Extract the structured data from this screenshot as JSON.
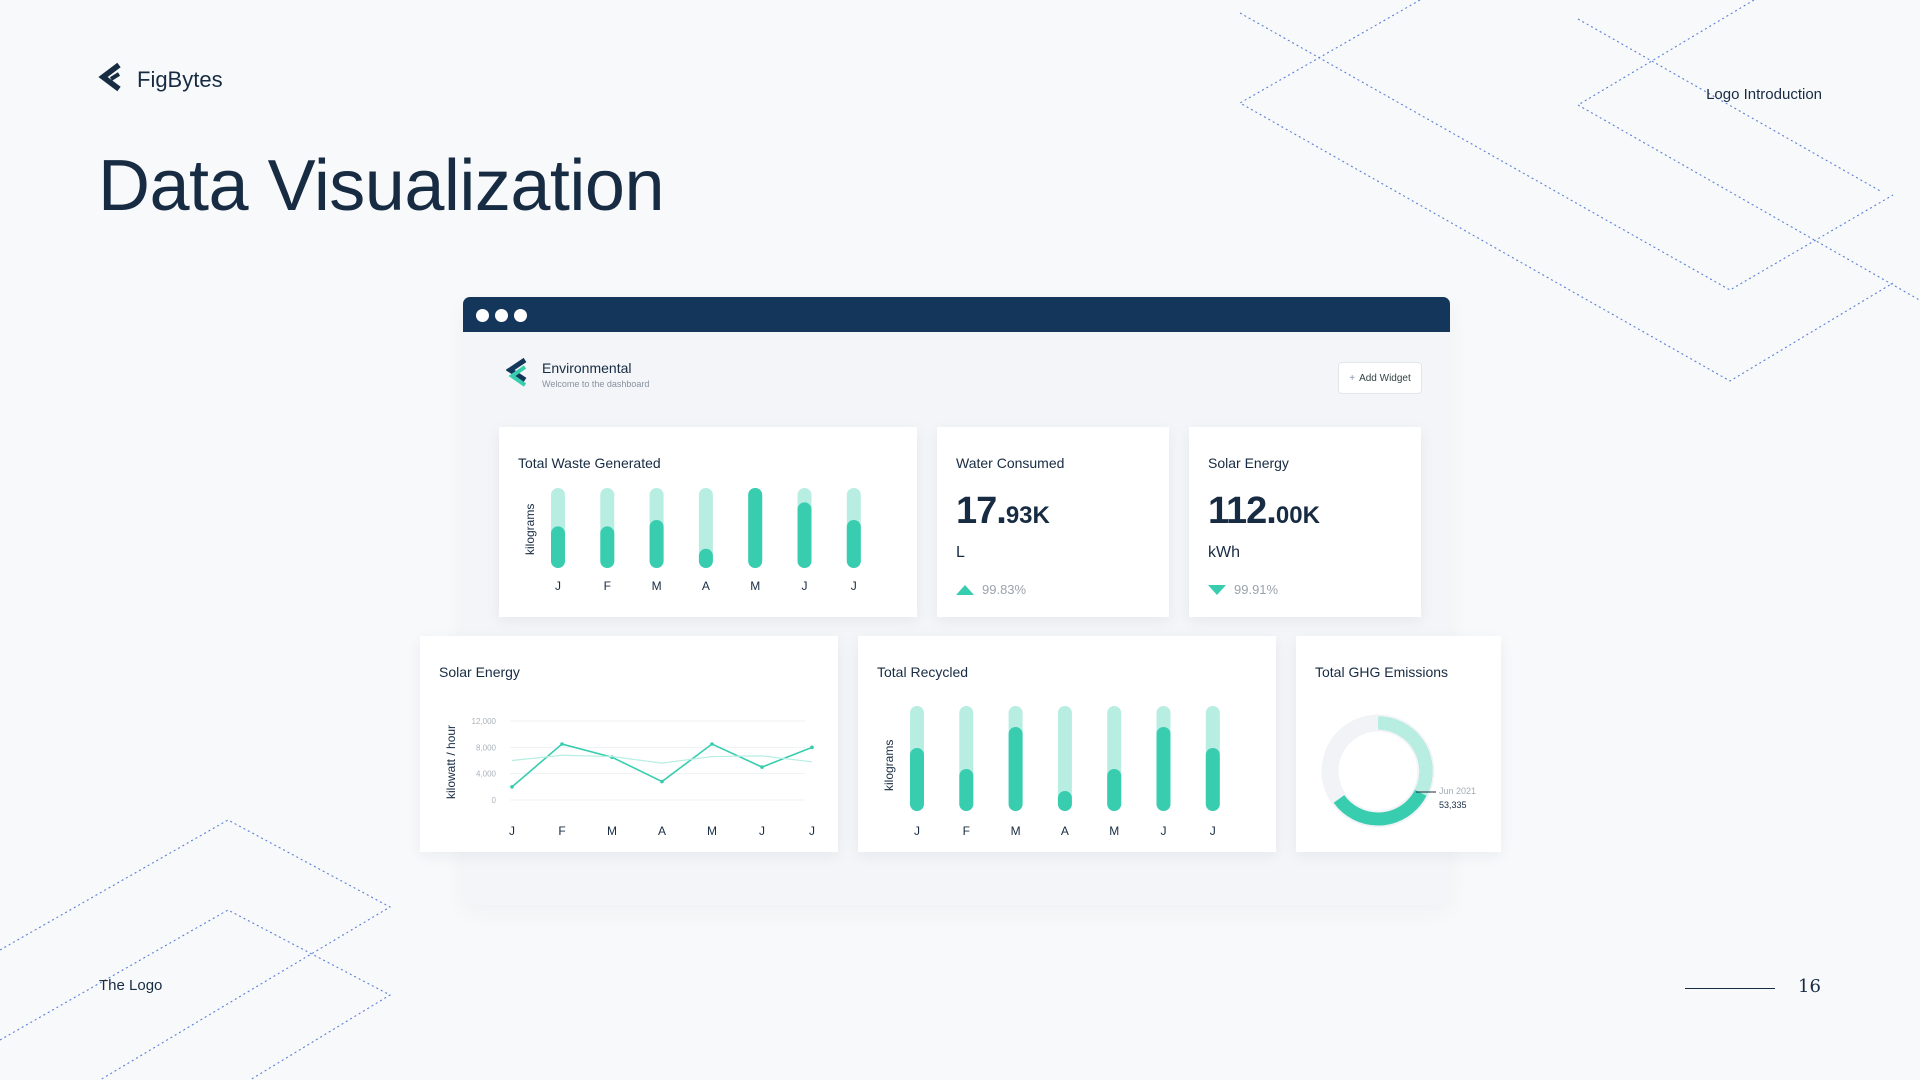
{
  "brand": {
    "name": "FigBytes"
  },
  "page": {
    "title": "Data Visualization",
    "section_top_right": "Logo Introduction",
    "section_bottom_left": "The Logo",
    "page_number": "16"
  },
  "colors": {
    "navy": "#14365a",
    "teal": "#39cdb0",
    "teal_light": "#b8ede2",
    "text": "#172b42"
  },
  "dashboard": {
    "app_title": "Environmental",
    "app_subtitle": "Welcome to the dashboard",
    "add_widget_label": "Add Widget",
    "add_widget_icon": "plus-icon",
    "cards": {
      "waste": {
        "title": "Total Waste Generated"
      },
      "water": {
        "title": "Water Consumed",
        "value": "17.",
        "suffix": "93K",
        "unit": "L",
        "change": "99.83%",
        "trend": "up"
      },
      "solar_kpi": {
        "title": "Solar Energy",
        "value": "112.",
        "suffix": "00K",
        "unit": "kWh",
        "change": "99.91%",
        "trend": "down"
      },
      "solar_chart": {
        "title": "Solar Energy"
      },
      "recycled": {
        "title": "Total Recycled"
      },
      "ghg": {
        "title": "Total GHG Emissions",
        "callout_date": "Jun 2021",
        "callout_value": "53,335"
      }
    }
  },
  "chart_data": [
    {
      "type": "bar",
      "title": "Total Waste Generated",
      "ylabel": "kilograms",
      "categories": [
        "J",
        "F",
        "M",
        "A",
        "M",
        "J",
        "J"
      ],
      "values": [
        0.52,
        0.52,
        0.6,
        0.24,
        1.0,
        0.82,
        0.6
      ],
      "ylim": [
        0,
        1
      ]
    },
    {
      "type": "line",
      "title": "Solar Energy",
      "ylabel": "kilowatt / hour",
      "categories": [
        "J",
        "F",
        "M",
        "A",
        "M",
        "J",
        "J"
      ],
      "yticks": [
        "12,000",
        "8,000",
        "4,000",
        "0"
      ],
      "ylim": [
        0,
        12000
      ],
      "series": [
        {
          "values": [
            2000,
            8500,
            6500,
            2800,
            8500,
            5000,
            8000
          ]
        },
        {
          "values": [
            6000,
            6800,
            6600,
            5600,
            6600,
            6700,
            5800
          ]
        }
      ]
    },
    {
      "type": "bar",
      "title": "Total Recycled",
      "ylabel": "kilograms",
      "categories": [
        "J",
        "F",
        "M",
        "A",
        "M",
        "J",
        "J"
      ],
      "values": [
        0.6,
        0.4,
        0.8,
        0.19,
        0.4,
        0.8,
        0.6
      ],
      "ylim": [
        0,
        1
      ]
    },
    {
      "type": "pie",
      "title": "Total GHG Emissions",
      "values": [
        65,
        35
      ],
      "annotations": [
        "Jun 2021",
        "53,335"
      ]
    }
  ]
}
